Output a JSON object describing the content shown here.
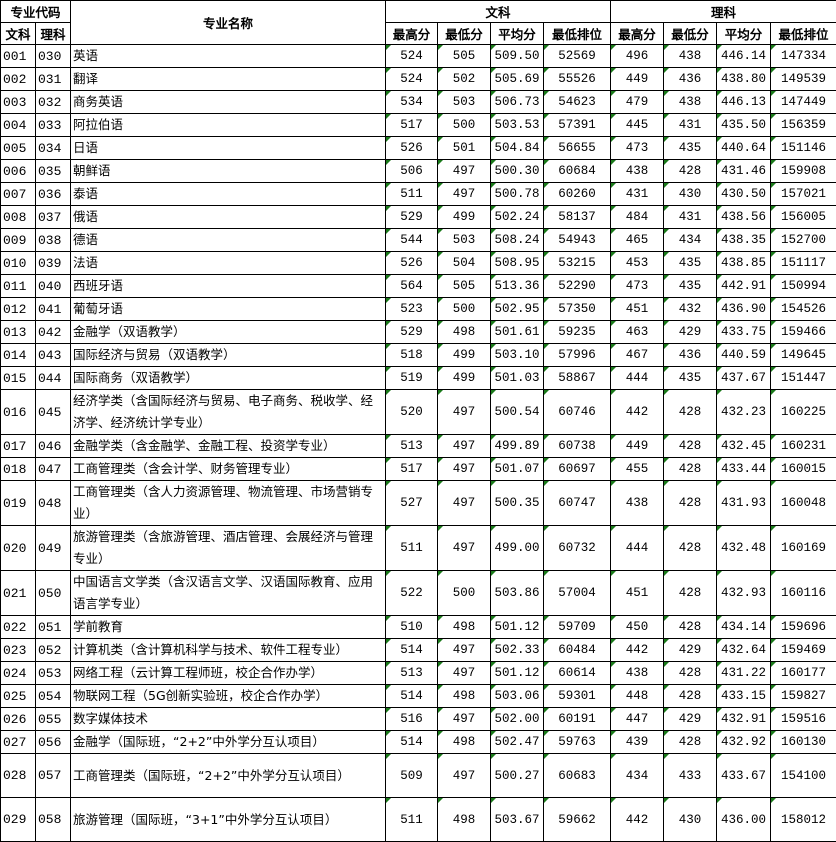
{
  "header": {
    "code_group": "专业代码",
    "name": "专业名称",
    "wenke": "文科",
    "like": "理科",
    "code_wen": "文科",
    "code_li": "理科",
    "cols": [
      "最高分",
      "最低分",
      "平均分",
      "最低排位",
      "最高分",
      "最低分",
      "平均分",
      "最低排位"
    ]
  },
  "rows": [
    [
      "001",
      "030",
      "英语",
      "524",
      "505",
      "509.50",
      "52569",
      "496",
      "438",
      "446.14",
      "147334"
    ],
    [
      "002",
      "031",
      "翻译",
      "524",
      "502",
      "505.69",
      "55526",
      "449",
      "436",
      "438.80",
      "149539"
    ],
    [
      "003",
      "032",
      "商务英语",
      "534",
      "503",
      "506.73",
      "54623",
      "479",
      "438",
      "446.13",
      "147449"
    ],
    [
      "004",
      "033",
      "阿拉伯语",
      "517",
      "500",
      "503.53",
      "57391",
      "445",
      "431",
      "435.50",
      "156359"
    ],
    [
      "005",
      "034",
      "日语",
      "526",
      "501",
      "504.84",
      "56655",
      "473",
      "435",
      "440.64",
      "151146"
    ],
    [
      "006",
      "035",
      "朝鲜语",
      "506",
      "497",
      "500.30",
      "60684",
      "438",
      "428",
      "431.46",
      "159908"
    ],
    [
      "007",
      "036",
      "泰语",
      "511",
      "497",
      "500.78",
      "60260",
      "431",
      "430",
      "430.50",
      "157021"
    ],
    [
      "008",
      "037",
      "俄语",
      "529",
      "499",
      "502.24",
      "58137",
      "484",
      "431",
      "438.56",
      "156005"
    ],
    [
      "009",
      "038",
      "德语",
      "544",
      "503",
      "508.24",
      "54943",
      "465",
      "434",
      "438.35",
      "152700"
    ],
    [
      "010",
      "039",
      "法语",
      "526",
      "504",
      "508.95",
      "53215",
      "453",
      "435",
      "438.85",
      "151117"
    ],
    [
      "011",
      "040",
      "西班牙语",
      "564",
      "505",
      "513.36",
      "52290",
      "473",
      "435",
      "442.91",
      "150994"
    ],
    [
      "012",
      "041",
      "葡萄牙语",
      "523",
      "500",
      "502.95",
      "57350",
      "451",
      "432",
      "436.90",
      "154526"
    ],
    [
      "013",
      "042",
      "金融学（双语教学）",
      "529",
      "498",
      "501.61",
      "59235",
      "463",
      "429",
      "433.75",
      "159466"
    ],
    [
      "014",
      "043",
      "国际经济与贸易（双语教学）",
      "518",
      "499",
      "503.10",
      "57996",
      "467",
      "436",
      "440.59",
      "149645"
    ],
    [
      "015",
      "044",
      "国际商务（双语教学）",
      "519",
      "499",
      "501.03",
      "58867",
      "444",
      "435",
      "437.67",
      "151447"
    ],
    [
      "016",
      "045",
      "经济学类（含国际经济与贸易、电子商务、税收学、经济学、经济统计学专业）",
      "520",
      "497",
      "500.54",
      "60746",
      "442",
      "428",
      "432.23",
      "160225"
    ],
    [
      "017",
      "046",
      "金融学类（含金融学、金融工程、投资学专业）",
      "513",
      "497",
      "499.89",
      "60738",
      "449",
      "428",
      "432.45",
      "160231"
    ],
    [
      "018",
      "047",
      "工商管理类（含会计学、财务管理专业）",
      "517",
      "497",
      "501.07",
      "60697",
      "455",
      "428",
      "433.44",
      "160015"
    ],
    [
      "019",
      "048",
      "工商管理类（含人力资源管理、物流管理、市场营销专业）",
      "527",
      "497",
      "500.35",
      "60747",
      "438",
      "428",
      "431.93",
      "160048"
    ],
    [
      "020",
      "049",
      "旅游管理类（含旅游管理、酒店管理、会展经济与管理专业）",
      "511",
      "497",
      "499.00",
      "60732",
      "444",
      "428",
      "432.48",
      "160169"
    ],
    [
      "021",
      "050",
      "中国语言文学类（含汉语言文学、汉语国际教育、应用语言学专业）",
      "522",
      "500",
      "503.86",
      "57004",
      "451",
      "428",
      "432.93",
      "160116"
    ],
    [
      "022",
      "051",
      "学前教育",
      "510",
      "498",
      "501.12",
      "59709",
      "450",
      "428",
      "434.14",
      "159696"
    ],
    [
      "023",
      "052",
      "计算机类（含计算机科学与技术、软件工程专业）",
      "514",
      "497",
      "502.33",
      "60484",
      "442",
      "429",
      "432.64",
      "159469"
    ],
    [
      "024",
      "053",
      "网络工程（云计算工程师班，校企合作办学）",
      "513",
      "497",
      "501.12",
      "60614",
      "438",
      "428",
      "431.22",
      "160177"
    ],
    [
      "025",
      "054",
      "物联网工程（5G创新实验班，校企合作办学）",
      "514",
      "498",
      "503.06",
      "59301",
      "448",
      "428",
      "433.15",
      "159827"
    ],
    [
      "026",
      "055",
      "数字媒体技术",
      "516",
      "497",
      "502.00",
      "60191",
      "447",
      "429",
      "432.91",
      "159516"
    ],
    [
      "027",
      "056",
      "金融学（国际班，“2+2”中外学分互认项目）",
      "514",
      "498",
      "502.47",
      "59763",
      "439",
      "428",
      "432.92",
      "160130"
    ],
    [
      "028",
      "057",
      "工商管理类（国际班，“2+2”中外学分互认项目）",
      "509",
      "497",
      "500.27",
      "60683",
      "434",
      "433",
      "433.67",
      "154100"
    ],
    [
      "029",
      "058",
      "旅游管理（国际班，“3+1”中外学分互认项目）",
      "511",
      "498",
      "503.67",
      "59662",
      "442",
      "430",
      "436.00",
      "158012"
    ]
  ]
}
